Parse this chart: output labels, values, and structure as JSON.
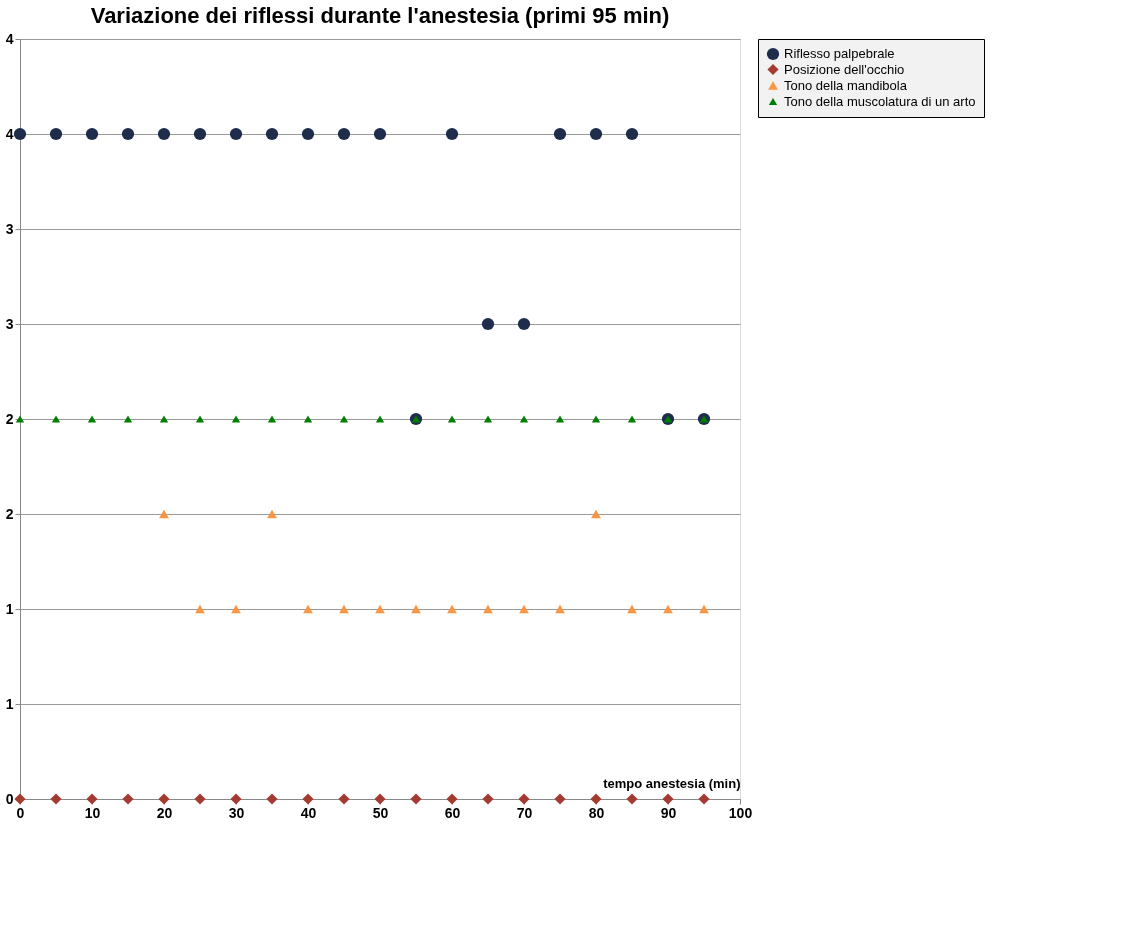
{
  "chart_data": {
    "type": "scatter",
    "title": "Variazione dei riflessi durante l'anestesia (primi 95 min)",
    "xlabel": "tempo anestesia (min)",
    "x": [
      0,
      5,
      10,
      15,
      20,
      25,
      30,
      35,
      40,
      45,
      50,
      55,
      60,
      65,
      70,
      75,
      80,
      85,
      90,
      95
    ],
    "series": [
      {
        "name": "Riflesso palpebrale",
        "color": "#1f2d4d",
        "marker": "circle",
        "values": [
          3.5,
          3.5,
          3.5,
          3.5,
          3.5,
          3.5,
          3.5,
          3.5,
          3.5,
          3.5,
          3.5,
          2,
          3.5,
          2.5,
          2.5,
          3.5,
          3.5,
          3.5,
          2,
          2
        ]
      },
      {
        "name": "Posizione dell'occhio",
        "color": "#a33b32",
        "marker": "diamond",
        "values": [
          0,
          0,
          0,
          0,
          0,
          0,
          0,
          0,
          0,
          0,
          0,
          0,
          0,
          0,
          0,
          0,
          0,
          0,
          0,
          0
        ]
      },
      {
        "name": "Tono della mandibola",
        "color": "#f79646",
        "marker": "triangle",
        "values": [
          null,
          null,
          null,
          null,
          1.5,
          1,
          1,
          1.5,
          1,
          1,
          1,
          1,
          1,
          1,
          1,
          1,
          1.5,
          1,
          1,
          1
        ]
      },
      {
        "name": "Tono della muscolatura di un arto",
        "color": "#008000",
        "marker": "triangle",
        "values": [
          2,
          2,
          2,
          2,
          2,
          2,
          2,
          2,
          2,
          2,
          2,
          2,
          2,
          2,
          2,
          2,
          2,
          2,
          2,
          2
        ]
      }
    ],
    "xlim": [
      0,
      100
    ],
    "xticks": [
      0,
      10,
      20,
      30,
      40,
      50,
      60,
      70,
      80,
      90,
      100
    ],
    "ylim": [
      0,
      4
    ],
    "yticks": [
      0,
      {
        "value": 0.5,
        "label": "1"
      },
      1,
      {
        "value": 1.5,
        "label": "2"
      },
      2,
      {
        "value": 2.5,
        "label": "3"
      },
      3,
      {
        "value": 3.5,
        "label": "4"
      },
      4
    ],
    "grid": "y",
    "legend": "right"
  }
}
